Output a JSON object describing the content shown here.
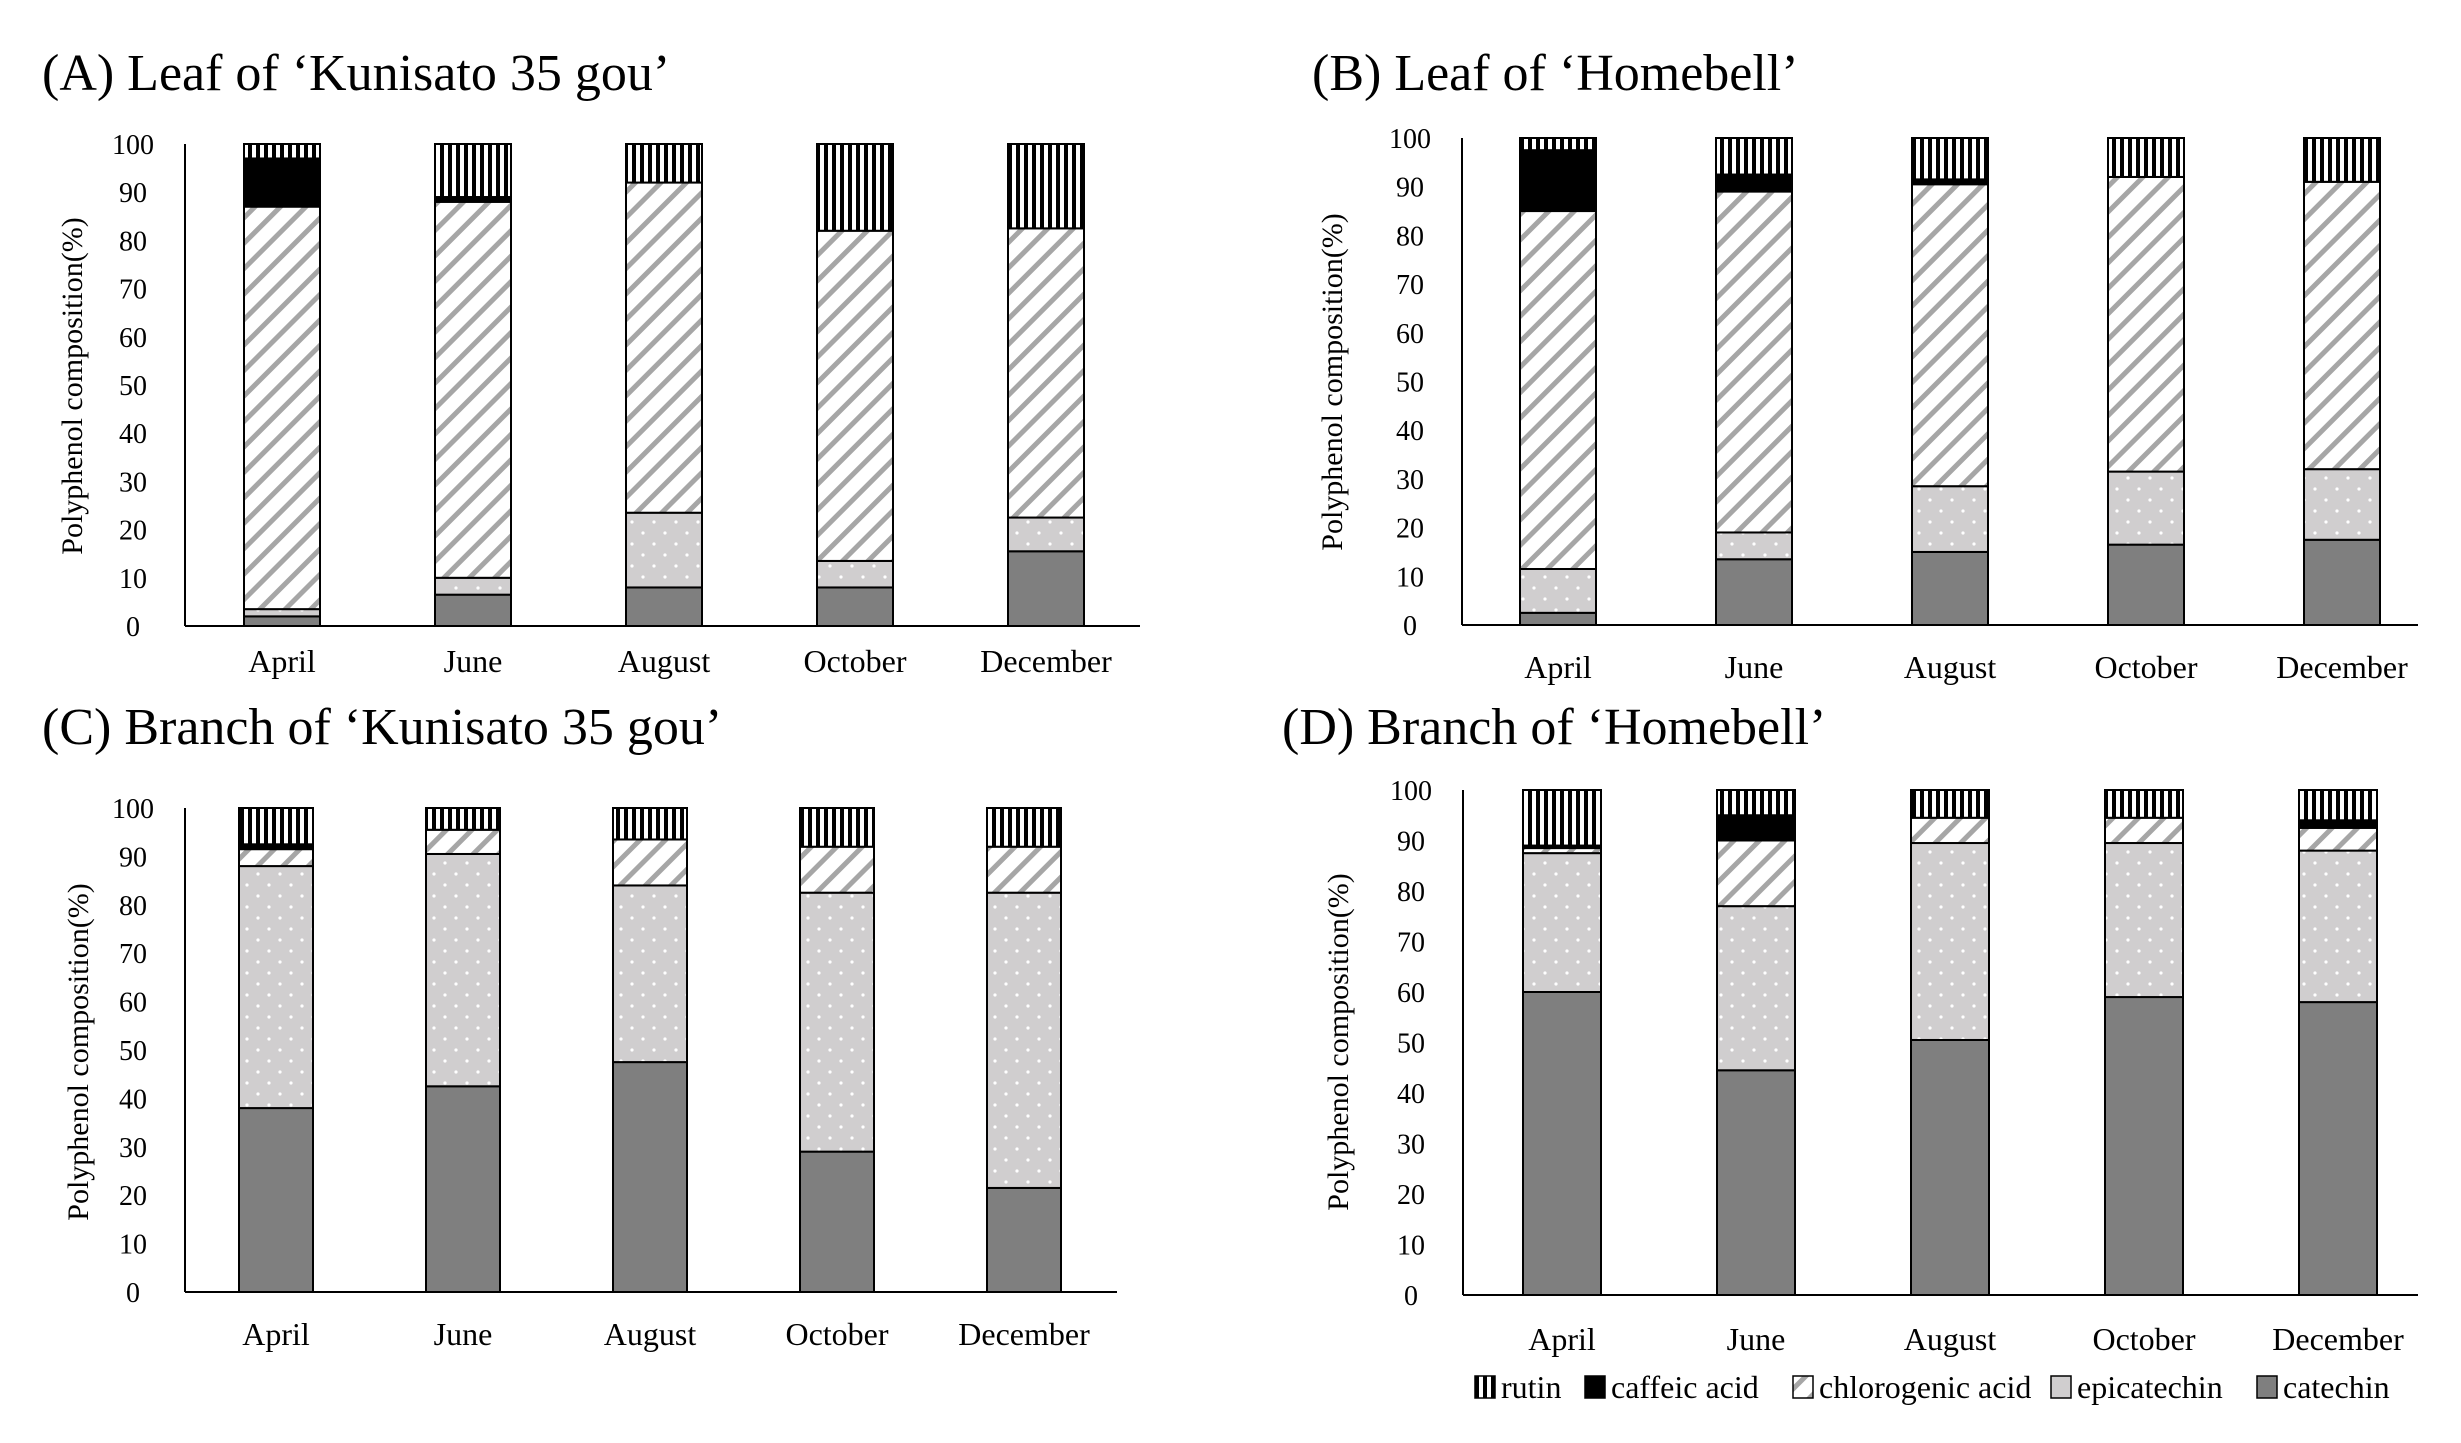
{
  "colors": {
    "catechin": "#7f7f7f",
    "epicatechin": "#d0cecf",
    "chlorogenic_acid": "#ffffff",
    "chlorogenic_hatch": "#a6a6a6",
    "caffeic_acid": "#000000",
    "rutin": "#ffffff",
    "rutin_hatch": "#000000",
    "axis": "#000000",
    "dots": "#ffffff"
  },
  "legend": {
    "placement": "bottom-right",
    "items": [
      {
        "key": "rutin",
        "label": "rutin"
      },
      {
        "key": "caffeic",
        "label": "caffeic acid"
      },
      {
        "key": "chlorogenic",
        "label": "chlorogenic acid"
      },
      {
        "key": "epicatechin",
        "label": "epicatechin"
      },
      {
        "key": "catechin",
        "label": "catechin"
      }
    ]
  },
  "chart_data": [
    {
      "type": "bar",
      "stacked": true,
      "title": "(A) Leaf of ‘Kunisato 35 gou’",
      "ylabel": "Polyphenol composition(%)",
      "ylim": [
        0,
        100
      ],
      "yticks": [
        "0",
        "10",
        "20",
        "30",
        "40",
        "50",
        "60",
        "70",
        "80",
        "90",
        "100"
      ],
      "categories": [
        "April",
        "June",
        "August",
        "October",
        "December"
      ],
      "series": [
        {
          "key": "catechin",
          "values": [
            2,
            6.5,
            8,
            8,
            15.5
          ]
        },
        {
          "key": "epicatechin",
          "values": [
            1.5,
            3.5,
            15.5,
            5.5,
            7
          ]
        },
        {
          "key": "chlorogenic",
          "values": [
            83.5,
            78,
            68.5,
            68.5,
            60
          ]
        },
        {
          "key": "caffeic",
          "values": [
            10,
            1,
            0,
            0,
            0
          ]
        },
        {
          "key": "rutin",
          "values": [
            3,
            11,
            8,
            18,
            17.5
          ]
        }
      ]
    },
    {
      "type": "bar",
      "stacked": true,
      "title": "(B) Leaf of ‘Homebell’",
      "ylabel": "Polyphenol composition(%)",
      "ylim": [
        0,
        100
      ],
      "yticks": [
        "0",
        "10",
        "20",
        "30",
        "40",
        "50",
        "60",
        "70",
        "80",
        "90",
        "100"
      ],
      "categories": [
        "April",
        "June",
        "August",
        "October",
        "December"
      ],
      "series": [
        {
          "key": "catechin",
          "values": [
            2.5,
            13.5,
            15,
            16.5,
            17.5
          ]
        },
        {
          "key": "epicatechin",
          "values": [
            9,
            5.5,
            13.5,
            15,
            14.5
          ]
        },
        {
          "key": "chlorogenic",
          "values": [
            73.5,
            70,
            62,
            60.5,
            59
          ]
        },
        {
          "key": "caffeic",
          "values": [
            12.5,
            3.5,
            1,
            0,
            0
          ]
        },
        {
          "key": "rutin",
          "values": [
            2.5,
            7.5,
            8.5,
            8,
            9
          ]
        }
      ]
    },
    {
      "type": "bar",
      "stacked": true,
      "title": "(C) Branch of ‘Kunisato 35 gou’",
      "ylabel": "Polyphenol composition(%)",
      "ylim": [
        0,
        100
      ],
      "yticks": [
        "0",
        "10",
        "20",
        "30",
        "40",
        "50",
        "60",
        "70",
        "80",
        "90",
        "100"
      ],
      "categories": [
        "April",
        "June",
        "August",
        "October",
        "December"
      ],
      "series": [
        {
          "key": "catechin",
          "values": [
            38,
            42.5,
            47.5,
            29,
            21.5
          ]
        },
        {
          "key": "epicatechin",
          "values": [
            50,
            48,
            36.5,
            53.5,
            61
          ]
        },
        {
          "key": "chlorogenic",
          "values": [
            3.5,
            5,
            9.5,
            9.5,
            9.5
          ]
        },
        {
          "key": "caffeic",
          "values": [
            1,
            0,
            0,
            0,
            0
          ]
        },
        {
          "key": "rutin",
          "values": [
            7.5,
            4.5,
            6.5,
            8,
            8
          ]
        }
      ]
    },
    {
      "type": "bar",
      "stacked": true,
      "title": "(D) Branch of ‘Homebell’",
      "ylabel": "Polyphenol composition(%)",
      "ylim": [
        0,
        100
      ],
      "yticks": [
        "0",
        "10",
        "20",
        "30",
        "40",
        "50",
        "60",
        "70",
        "80",
        "90",
        "100"
      ],
      "categories": [
        "April",
        "June",
        "August",
        "October",
        "December"
      ],
      "series": [
        {
          "key": "catechin",
          "values": [
            60,
            44.5,
            50.5,
            59,
            58
          ]
        },
        {
          "key": "epicatechin",
          "values": [
            27.5,
            32.5,
            39,
            30.5,
            30
          ]
        },
        {
          "key": "chlorogenic",
          "values": [
            1,
            13,
            5,
            5,
            4.5
          ]
        },
        {
          "key": "caffeic",
          "values": [
            0.5,
            5,
            0,
            0,
            1.5
          ]
        },
        {
          "key": "rutin",
          "values": [
            11,
            5,
            5.5,
            5.5,
            6
          ]
        }
      ]
    }
  ]
}
